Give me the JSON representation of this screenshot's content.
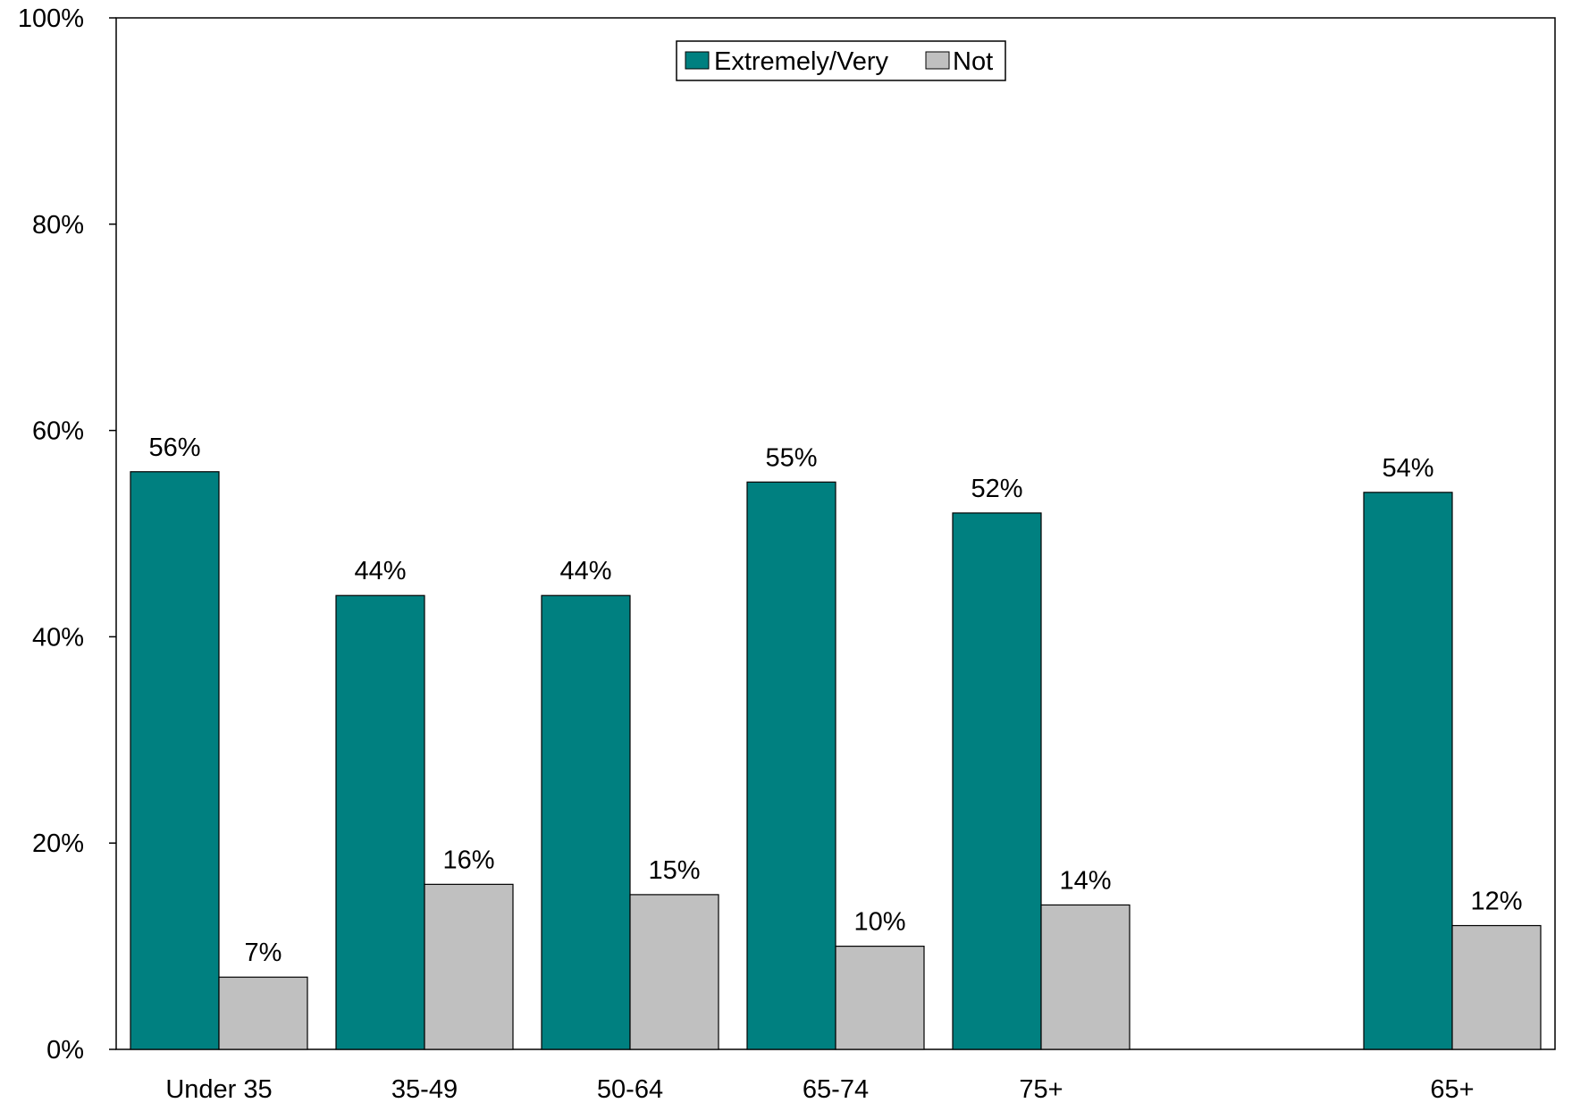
{
  "chart_data": {
    "type": "bar",
    "categories": [
      "Under 35",
      "35-49",
      "50-64",
      "65-74",
      "75+",
      "",
      "65+"
    ],
    "series": [
      {
        "name": "Extremely/Very",
        "values": [
          56,
          44,
          44,
          55,
          52,
          null,
          54
        ],
        "color": "#008080"
      },
      {
        "name": "Not",
        "values": [
          7,
          16,
          15,
          10,
          14,
          null,
          12
        ],
        "color": "#c0c0c0"
      }
    ],
    "data_labels": {
      "Extremely/Very": [
        "56%",
        "44%",
        "44%",
        "55%",
        "52%",
        "",
        "54%"
      ],
      "Not": [
        "7%",
        "16%",
        "15%",
        "10%",
        "14%",
        "",
        "12%"
      ]
    },
    "y_ticks": [
      "0%",
      "20%",
      "40%",
      "60%",
      "80%",
      "100%"
    ],
    "ylim": [
      0,
      100
    ],
    "legend_position": "top-center",
    "grid": false
  }
}
